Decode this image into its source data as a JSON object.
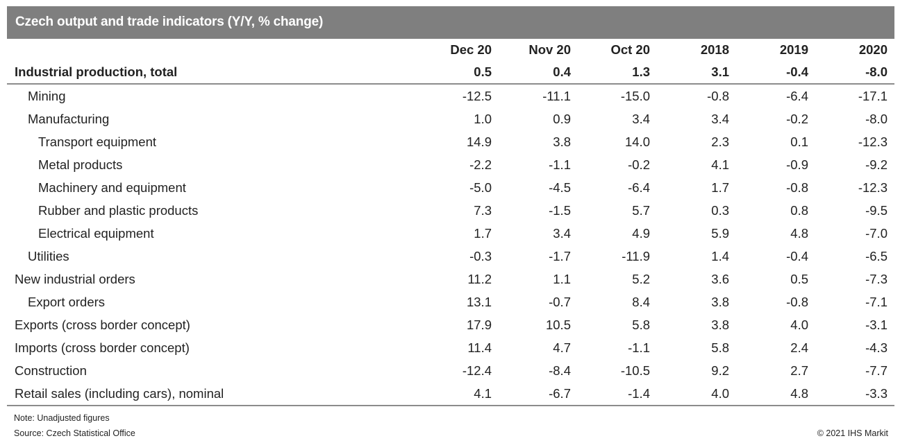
{
  "title": "Czech output and trade indicators (Y/Y, % change)",
  "chart_data": {
    "type": "table",
    "title": "Czech output and trade indicators (Y/Y, % change)",
    "columns": [
      "Dec 20",
      "Nov 20",
      "Oct 20",
      "2018",
      "2019",
      "2020"
    ],
    "rows": [
      {
        "label": "Industrial production, total",
        "level": 0,
        "bold": true,
        "values": [
          "0.5",
          "0.4",
          "1.3",
          "3.1",
          "-0.4",
          "-8.0"
        ]
      },
      {
        "label": "Mining",
        "level": 1,
        "values": [
          "-12.5",
          "-11.1",
          "-15.0",
          "-0.8",
          "-6.4",
          "-17.1"
        ]
      },
      {
        "label": "Manufacturing",
        "level": 1,
        "values": [
          "1.0",
          "0.9",
          "3.4",
          "3.4",
          "-0.2",
          "-8.0"
        ]
      },
      {
        "label": "Transport equipment",
        "level": 2,
        "values": [
          "14.9",
          "3.8",
          "14.0",
          "2.3",
          "0.1",
          "-12.3"
        ]
      },
      {
        "label": "Metal products",
        "level": 2,
        "values": [
          "-2.2",
          "-1.1",
          "-0.2",
          "4.1",
          "-0.9",
          "-9.2"
        ]
      },
      {
        "label": "Machinery and equipment",
        "level": 2,
        "values": [
          "-5.0",
          "-4.5",
          "-6.4",
          "1.7",
          "-0.8",
          "-12.3"
        ]
      },
      {
        "label": "Rubber and plastic products",
        "level": 2,
        "values": [
          "7.3",
          "-1.5",
          "5.7",
          "0.3",
          "0.8",
          "-9.5"
        ]
      },
      {
        "label": "Electrical equipment",
        "level": 2,
        "values": [
          "1.7",
          "3.4",
          "4.9",
          "5.9",
          "4.8",
          "-7.0"
        ]
      },
      {
        "label": "Utilities",
        "level": 1,
        "values": [
          "-0.3",
          "-1.7",
          "-11.9",
          "1.4",
          "-0.4",
          "-6.5"
        ]
      },
      {
        "label": "New industrial orders",
        "level": 0,
        "values": [
          "11.2",
          "1.1",
          "5.2",
          "3.6",
          "0.5",
          "-7.3"
        ]
      },
      {
        "label": "Export orders",
        "level": 1,
        "values": [
          "13.1",
          "-0.7",
          "8.4",
          "3.8",
          "-0.8",
          "-7.1"
        ]
      },
      {
        "label": "Exports (cross border concept)",
        "level": 0,
        "values": [
          "17.9",
          "10.5",
          "5.8",
          "3.8",
          "4.0",
          "-3.1"
        ]
      },
      {
        "label": "Imports (cross border concept)",
        "level": 0,
        "values": [
          "11.4",
          "4.7",
          "-1.1",
          "5.8",
          "2.4",
          "-4.3"
        ]
      },
      {
        "label": "Construction",
        "level": 0,
        "values": [
          "-12.4",
          "-8.4",
          "-10.5",
          "9.2",
          "2.7",
          "-7.7"
        ]
      },
      {
        "label": "Retail sales (including cars), nominal",
        "level": 0,
        "values": [
          "4.1",
          "-6.7",
          "-1.4",
          "4.0",
          "4.8",
          "-3.3"
        ]
      }
    ]
  },
  "footer": {
    "note": "Note: Unadjusted figures",
    "source": "Source: Czech Statistical Office",
    "copyright": "© 2021 IHS Markit"
  },
  "colors": {
    "header_bg": "#7f7f7f",
    "header_text": "#ffffff",
    "rule": "#8c8c8c"
  }
}
